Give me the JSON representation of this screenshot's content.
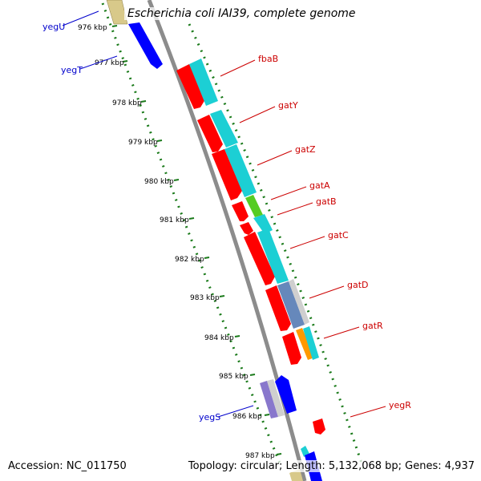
{
  "title": "Escherichia coli IAI39, complete genome",
  "footer": {
    "accession_label": "Accession:",
    "accession_value": "NC_011750",
    "topology_text": "Topology: circular; Length: 5,132,068 bp; Genes: 4,937"
  },
  "colors": {
    "backbone": "#8c8c8c",
    "tick": "#1a7a1a",
    "label_red": "#cc0000",
    "label_blue": "#0000cc",
    "gene_red": "#ff0000",
    "gene_cyan": "#1ccfd4",
    "gene_blue": "#0000ff",
    "gene_khaki": "#d8c98a",
    "gene_purple": "#8877cc",
    "gene_green": "#55cc22",
    "gene_steel": "#6688bb",
    "gene_orange": "#ff9900"
  },
  "scale": {
    "ticks": [
      "976 kbp",
      "977 kbp",
      "978 kbp",
      "979 kbp",
      "980 kbp",
      "981 kbp",
      "982 kbp",
      "983 kbp",
      "984 kbp",
      "985 kbp",
      "986 kbp",
      "987 kbp"
    ]
  },
  "gene_labels": {
    "right": [
      "fbaB",
      "gatY",
      "gatZ",
      "gatA",
      "gatB",
      "gatC",
      "gatD",
      "gatR",
      "yegR"
    ],
    "left": [
      "yegU",
      "yegT",
      "yegS"
    ]
  }
}
